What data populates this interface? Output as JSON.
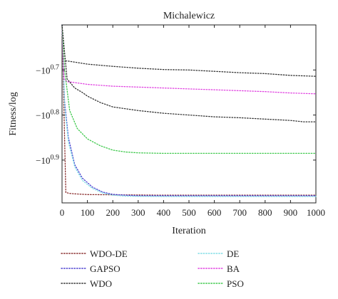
{
  "chart_data": {
    "type": "line",
    "title": "Michalewicz",
    "xlabel": "Iteration",
    "ylabel": "Fitness/log",
    "xlim": [
      0,
      1000
    ],
    "ylim": [
      -0.995,
      -0.6
    ],
    "y_scale": "log (negative values, plotted as -log10|f|)",
    "xticks": [
      0,
      100,
      200,
      300,
      400,
      500,
      600,
      700,
      800,
      900,
      1000
    ],
    "yticks": [
      {
        "value": -0.7,
        "label_base": "−10",
        "label_exp": "0.7"
      },
      {
        "value": -0.8,
        "label_base": "−10",
        "label_exp": "0.8"
      },
      {
        "value": -0.9,
        "label_base": "−10",
        "label_exp": "0.9"
      }
    ],
    "legend_position": "bottom, two columns",
    "series": [
      {
        "name": "WDO-DE",
        "color": "#8a2e2e",
        "x": [
          0,
          15,
          30,
          50,
          100,
          200,
          300,
          400,
          500,
          600,
          700,
          800,
          900,
          1000
        ],
        "y": [
          -0.6,
          -0.972,
          -0.974,
          -0.975,
          -0.9765,
          -0.977,
          -0.9775,
          -0.978,
          -0.978,
          -0.978,
          -0.978,
          -0.978,
          -0.978,
          -0.978
        ]
      },
      {
        "name": "GAPSO",
        "color": "#4a3fd0",
        "x": [
          0,
          10,
          25,
          50,
          80,
          120,
          160,
          200,
          250,
          300,
          400,
          500,
          600,
          700,
          800,
          900,
          1000
        ],
        "y": [
          -0.6,
          -0.77,
          -0.85,
          -0.91,
          -0.94,
          -0.96,
          -0.971,
          -0.976,
          -0.978,
          -0.979,
          -0.979,
          -0.979,
          -0.979,
          -0.979,
          -0.979,
          -0.979,
          -0.979
        ]
      },
      {
        "name": "WDO",
        "color": "#333333",
        "x": [
          0,
          5,
          20,
          100,
          200,
          300,
          400,
          500,
          600,
          700,
          800,
          900,
          1000
        ],
        "y": [
          -0.6,
          -0.68,
          -0.68,
          -0.687,
          -0.692,
          -0.696,
          -0.699,
          -0.7,
          -0.703,
          -0.706,
          -0.708,
          -0.712,
          -0.714
        ]
      },
      {
        "name": "DE",
        "color": "#7fdde6",
        "x": [
          0,
          10,
          25,
          50,
          80,
          120,
          160,
          200,
          250,
          300,
          400,
          500,
          600,
          700,
          800,
          900,
          1000
        ],
        "y": [
          -0.6,
          -0.78,
          -0.86,
          -0.915,
          -0.945,
          -0.963,
          -0.973,
          -0.978,
          -0.98,
          -0.9805,
          -0.981,
          -0.981,
          -0.981,
          -0.981,
          -0.981,
          -0.981,
          -0.981
        ]
      },
      {
        "name": "BA",
        "color": "#e040e0",
        "x": [
          0,
          8,
          20,
          50,
          100,
          200,
          300,
          400,
          500,
          600,
          700,
          800,
          900,
          1000
        ],
        "y": [
          -0.6,
          -0.72,
          -0.726,
          -0.728,
          -0.732,
          -0.736,
          -0.738,
          -0.74,
          -0.742,
          -0.744,
          -0.746,
          -0.748,
          -0.751,
          -0.753
        ]
      },
      {
        "name": "PSO",
        "color": "#3cc84a",
        "x": [
          0,
          10,
          30,
          60,
          100,
          150,
          200,
          250,
          300,
          400,
          500,
          600,
          700,
          800,
          900,
          1000
        ],
        "y": [
          -0.6,
          -0.7,
          -0.79,
          -0.83,
          -0.853,
          -0.868,
          -0.878,
          -0.882,
          -0.884,
          -0.885,
          -0.885,
          -0.885,
          -0.885,
          -0.885,
          -0.885,
          -0.885
        ]
      },
      {
        "name": "WDO (upper path)",
        "color": "#333333",
        "legend": false,
        "x": [
          0,
          20,
          50,
          80,
          100,
          150,
          200,
          300,
          400,
          500,
          600,
          700,
          800,
          900,
          950,
          1000
        ],
        "y": [
          -0.6,
          -0.72,
          -0.74,
          -0.75,
          -0.758,
          -0.772,
          -0.782,
          -0.79,
          -0.796,
          -0.8,
          -0.804,
          -0.806,
          -0.809,
          -0.812,
          -0.815,
          -0.815
        ]
      }
    ]
  }
}
